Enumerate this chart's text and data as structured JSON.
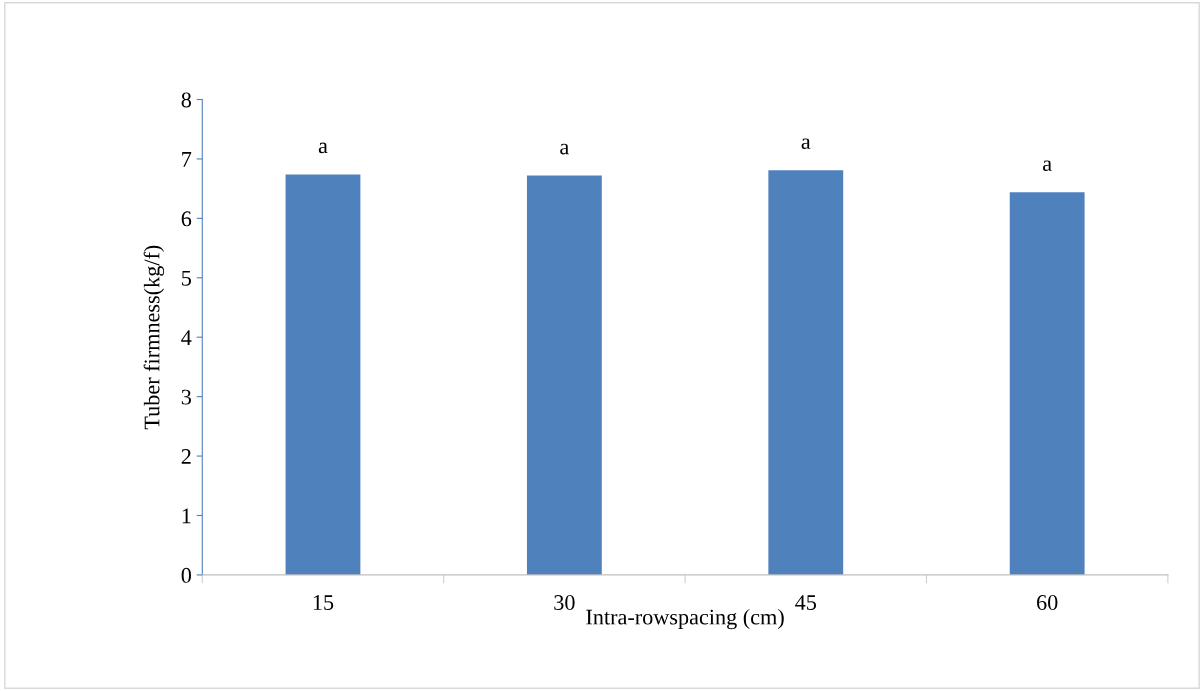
{
  "chart_data": {
    "type": "bar",
    "xlabel": "Intra-rowspacing (cm)",
    "ylabel": "Tuber firmness(kg/f)",
    "categories": [
      "15",
      "30",
      "45",
      "60"
    ],
    "values": [
      6.74,
      6.72,
      6.81,
      6.44
    ],
    "color": "#4f81bd",
    "ylim": [
      0,
      8
    ],
    "yticks": [
      0,
      1,
      2,
      3,
      4,
      5,
      6,
      7,
      8
    ],
    "grid": false,
    "annotations": [
      {
        "text": "a",
        "x": "15",
        "y": 6.74
      },
      {
        "text": "a",
        "x": "30",
        "y": 6.72
      },
      {
        "text": "a",
        "x": "45",
        "y": 6.81
      },
      {
        "text": "a",
        "x": "60",
        "y": 6.44
      }
    ]
  }
}
